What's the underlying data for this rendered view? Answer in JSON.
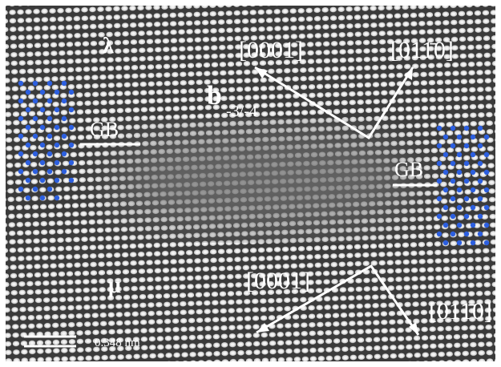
{
  "labels": {
    "top_phase": "λ",
    "bottom_phase": "μ",
    "gb_left": "GB",
    "gb_right": "GB",
    "burgers": "b",
    "burgers_sub": "-3/-4",
    "top_dir_1": "[0001]",
    "top_dir_2": "[011̄0]",
    "bottom_dir_1": "[0001]",
    "bottom_dir_2": "[011̄0]"
  },
  "scale_bar": "0.348 nm"
}
